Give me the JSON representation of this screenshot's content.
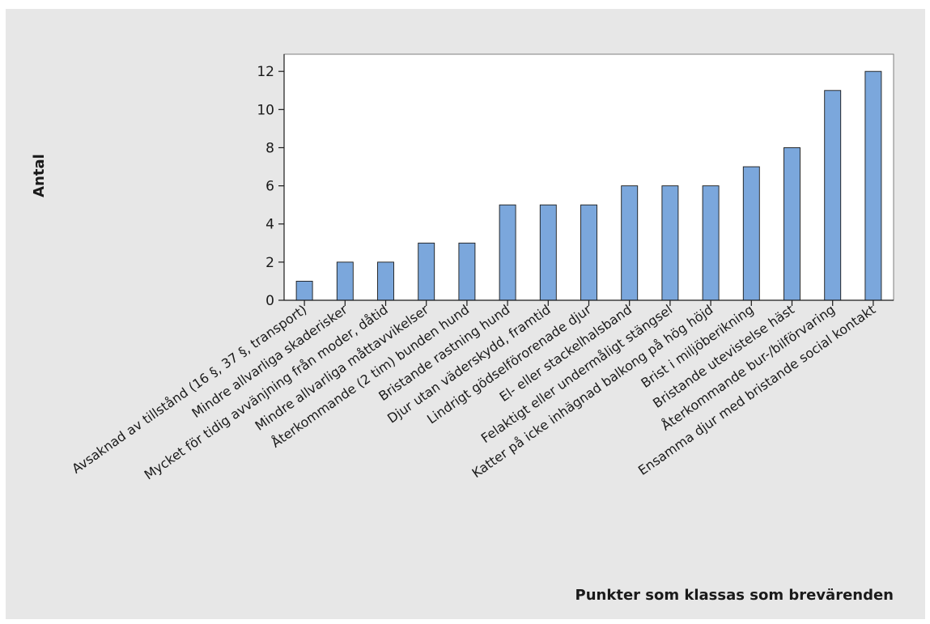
{
  "chart_data": {
    "type": "bar",
    "title": "",
    "xlabel": "Punkter som klassas som brevärenden",
    "ylabel": "Antal",
    "ylim": [
      0,
      12.9
    ],
    "yticks": [
      0,
      2,
      4,
      6,
      8,
      10,
      12
    ],
    "grid": false,
    "legend": "none",
    "bar_color": "#7ba7dc",
    "bar_edge_color": "#1a1a1a",
    "plot_background": "#ffffff",
    "chart_background": "#e7e7e7",
    "categories": [
      "Avsaknad av tillstånd (16 §, 37 §, transport)",
      "Mindre allvarliga skaderisker",
      "Mycket för tidig avvänjning från moder, dåtid",
      "Mindre allvarliga måttavvikelser",
      "Återkommande (2 tim) bunden hund",
      "Bristande rastning hund",
      "Djur utan väderskydd, framtid",
      "Lindrigt gödselförorenade djur",
      "El- eller stackelhalsband",
      "Felaktigt eller undermåligt stängsel",
      "Katter på icke inhägnad balkong på hög höjd",
      "Brist i miljöberikning",
      "Bristande utevistelse häst",
      "Återkommande bur-/bilförvaring",
      "Ensamma djur med bristande social kontakt"
    ],
    "values": [
      1,
      2,
      2,
      3,
      3,
      5,
      5,
      5,
      6,
      6,
      6,
      7,
      8,
      11,
      12
    ]
  }
}
